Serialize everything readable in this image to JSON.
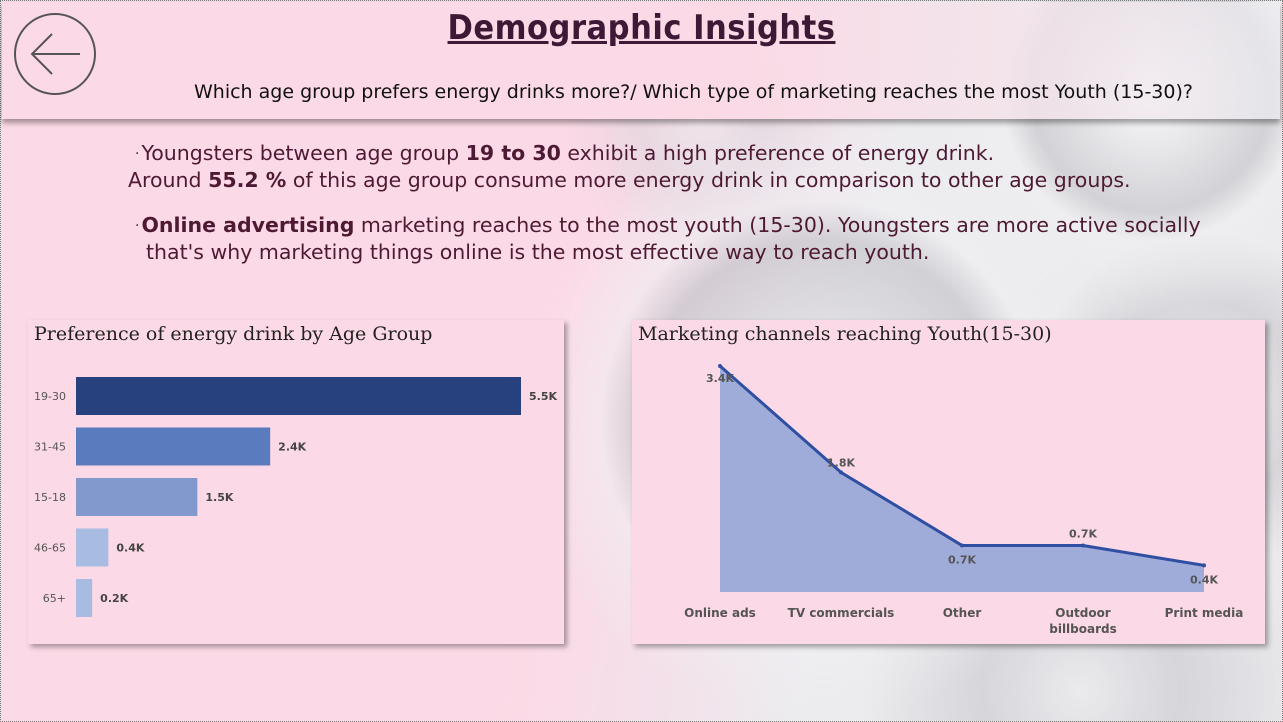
{
  "header": {
    "title": "Demographic Insights",
    "subtitle": "Which age group prefers energy drinks more?/ Which type of marketing reaches the most Youth (15-30)?",
    "back_icon": "arrow-left-icon"
  },
  "insights": {
    "bullet": "·",
    "line1_a": "Youngsters between age group ",
    "line1_b": "19 to 30",
    "line1_c": " exhibit a high preference of energy drink.",
    "line2_a": "Around ",
    "line2_b": "55.2 %",
    "line2_c": " of this age group consume more energy drink in comparison to other age groups.",
    "line3_a": "Online advertising",
    "line3_b": " marketing reaches to the most youth (15-30). Youngsters are more active socially",
    "line4": "that's why marketing things online is the most effective way to reach youth."
  },
  "colors": {
    "bar_shades": [
      "#27407e",
      "#5a7bbd",
      "#8199cc",
      "#a8bbe0",
      "#a8bbe0"
    ],
    "area_fill": "#8ea3d6",
    "line": "#2f4fa3"
  },
  "chart_data": [
    {
      "type": "bar",
      "orientation": "horizontal",
      "title": "Preference of energy drink by Age Group",
      "categories": [
        "19-30",
        "31-45",
        "15-18",
        "46-65",
        "65+"
      ],
      "values": [
        5500,
        2400,
        1500,
        400,
        200
      ],
      "labels": [
        "5.5K",
        "2.4K",
        "1.5K",
        "0.4K",
        "0.2K"
      ],
      "xlim": [
        0,
        5500
      ]
    },
    {
      "type": "area",
      "title": "Marketing channels reaching Youth(15-30)",
      "categories": [
        "Online ads",
        "TV commercials",
        "Other",
        "Outdoor billboards",
        "Print media"
      ],
      "values": [
        3400,
        1800,
        700,
        700,
        400
      ],
      "labels": [
        "3.4K",
        "1.8K",
        "0.7K",
        "0.7K",
        "0.4K"
      ],
      "ylim": [
        0,
        3400
      ]
    }
  ]
}
